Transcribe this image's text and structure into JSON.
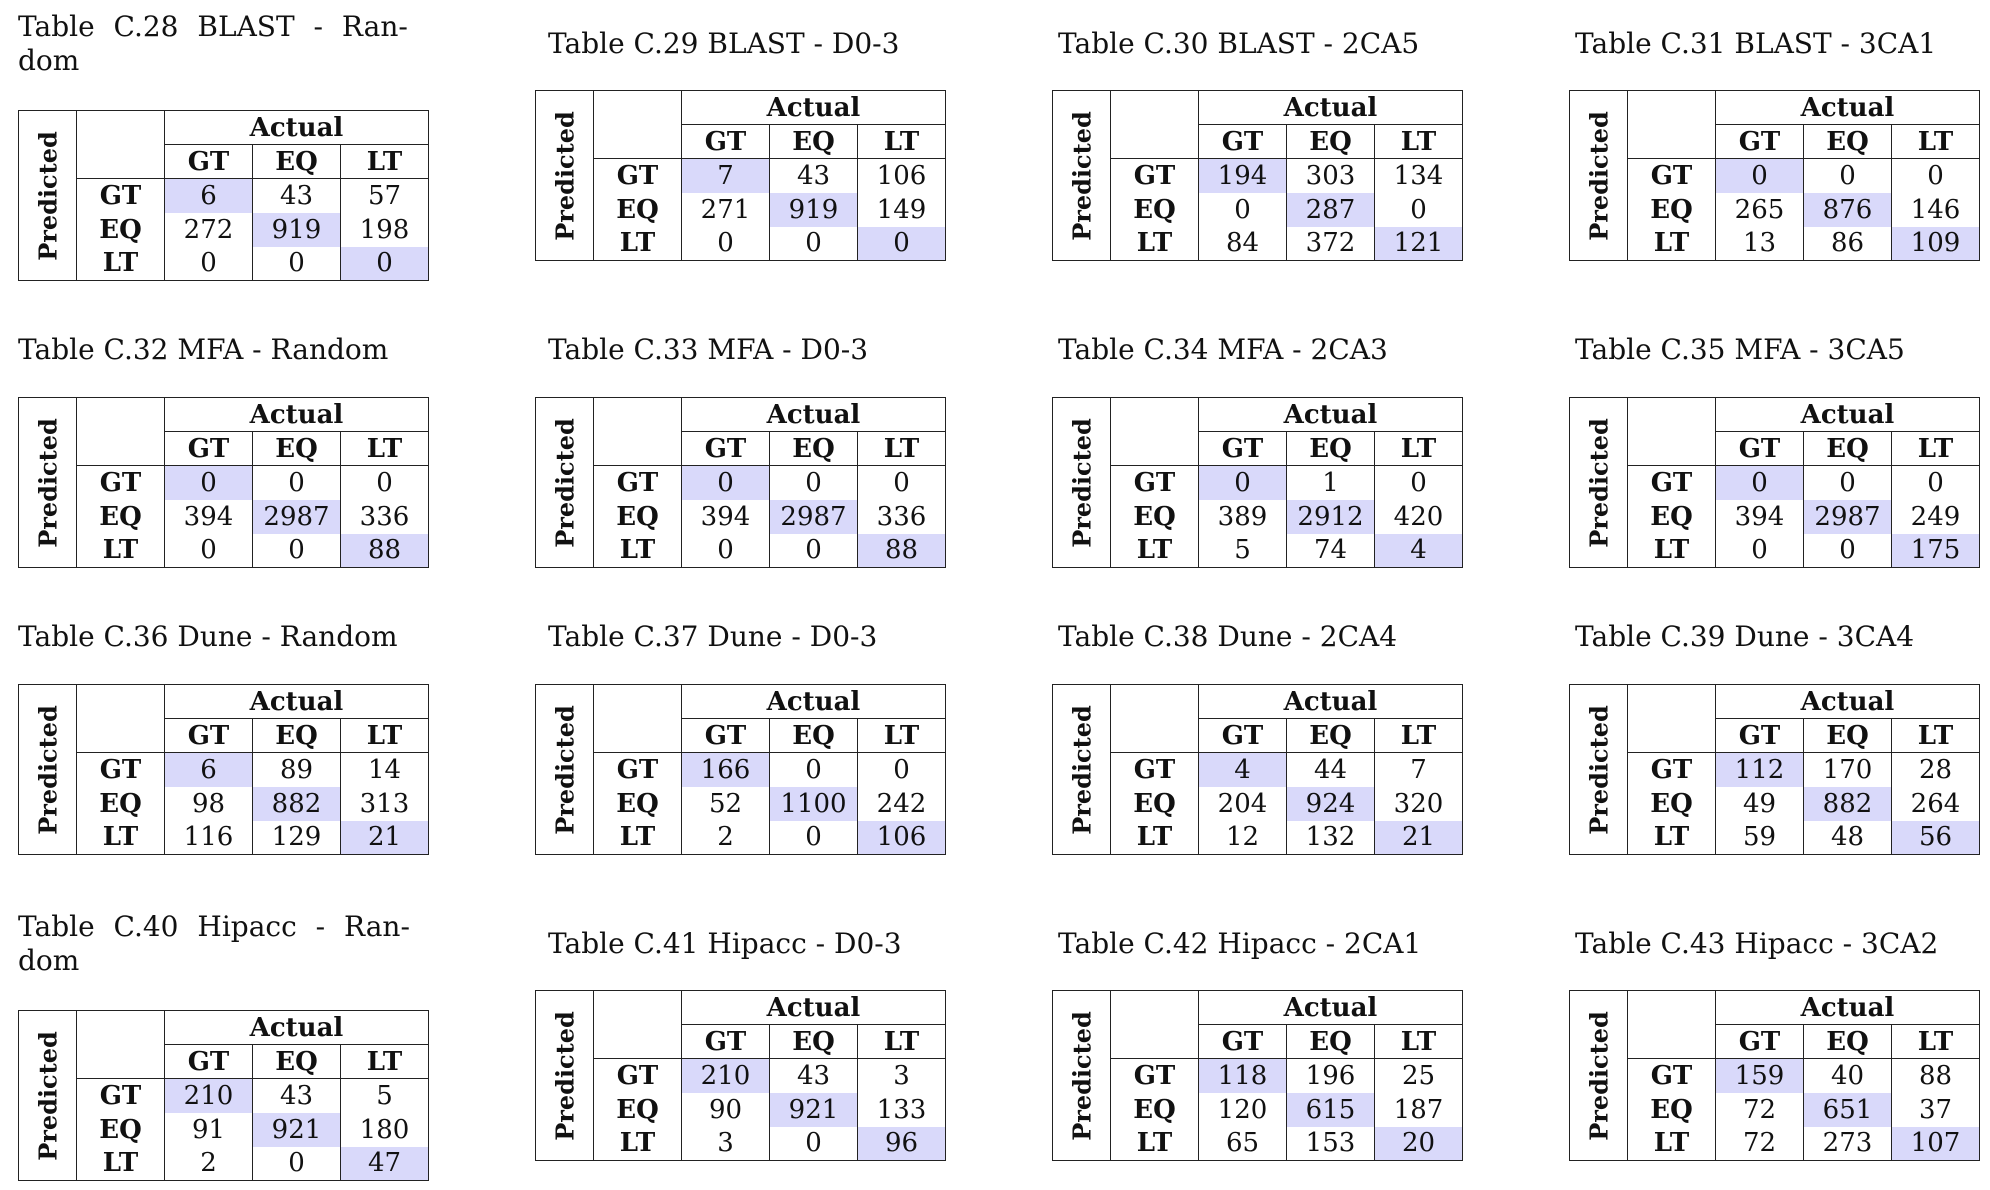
{
  "tables": [
    {
      "caption": "Table C.28 BLAST - Random",
      "rows": [
        [
          "6",
          "43",
          "57"
        ],
        [
          "272",
          "919",
          "198"
        ],
        [
          "0",
          "0",
          "0"
        ]
      ]
    },
    {
      "caption": "Table C.29 BLAST - D0-3",
      "rows": [
        [
          "7",
          "43",
          "106"
        ],
        [
          "271",
          "919",
          "149"
        ],
        [
          "0",
          "0",
          "0"
        ]
      ]
    },
    {
      "caption": "Table C.30 BLAST - 2CA5",
      "rows": [
        [
          "194",
          "303",
          "134"
        ],
        [
          "0",
          "287",
          "0"
        ],
        [
          "84",
          "372",
          "121"
        ]
      ]
    },
    {
      "caption": "Table C.31 BLAST - 3CA1",
      "rows": [
        [
          "0",
          "0",
          "0"
        ],
        [
          "265",
          "876",
          "146"
        ],
        [
          "13",
          "86",
          "109"
        ]
      ]
    },
    {
      "caption": "Table C.32 MFA - Random",
      "rows": [
        [
          "0",
          "0",
          "0"
        ],
        [
          "394",
          "2987",
          "336"
        ],
        [
          "0",
          "0",
          "88"
        ]
      ]
    },
    {
      "caption": "Table C.33 MFA - D0-3",
      "rows": [
        [
          "0",
          "0",
          "0"
        ],
        [
          "394",
          "2987",
          "336"
        ],
        [
          "0",
          "0",
          "88"
        ]
      ]
    },
    {
      "caption": "Table C.34 MFA - 2CA3",
      "rows": [
        [
          "0",
          "1",
          "0"
        ],
        [
          "389",
          "2912",
          "420"
        ],
        [
          "5",
          "74",
          "4"
        ]
      ]
    },
    {
      "caption": "Table C.35 MFA - 3CA5",
      "rows": [
        [
          "0",
          "0",
          "0"
        ],
        [
          "394",
          "2987",
          "249"
        ],
        [
          "0",
          "0",
          "175"
        ]
      ]
    },
    {
      "caption": "Table C.36 Dune - Random",
      "rows": [
        [
          "6",
          "89",
          "14"
        ],
        [
          "98",
          "882",
          "313"
        ],
        [
          "116",
          "129",
          "21"
        ]
      ]
    },
    {
      "caption": "Table C.37 Dune - D0-3",
      "rows": [
        [
          "166",
          "0",
          "0"
        ],
        [
          "52",
          "1100",
          "242"
        ],
        [
          "2",
          "0",
          "106"
        ]
      ]
    },
    {
      "caption": "Table C.38 Dune - 2CA4",
      "rows": [
        [
          "4",
          "44",
          "7"
        ],
        [
          "204",
          "924",
          "320"
        ],
        [
          "12",
          "132",
          "21"
        ]
      ]
    },
    {
      "caption": "Table C.39 Dune - 3CA4",
      "rows": [
        [
          "112",
          "170",
          "28"
        ],
        [
          "49",
          "882",
          "264"
        ],
        [
          "59",
          "48",
          "56"
        ]
      ]
    },
    {
      "caption": "Table C.40 Hipacc - Random",
      "rows": [
        [
          "210",
          "43",
          "5"
        ],
        [
          "91",
          "921",
          "180"
        ],
        [
          "2",
          "0",
          "47"
        ]
      ]
    },
    {
      "caption": "Table C.41 Hipacc - D0-3",
      "rows": [
        [
          "210",
          "43",
          "3"
        ],
        [
          "90",
          "921",
          "133"
        ],
        [
          "3",
          "0",
          "96"
        ]
      ]
    },
    {
      "caption": "Table C.42 Hipacc - 2CA1",
      "rows": [
        [
          "118",
          "196",
          "25"
        ],
        [
          "120",
          "615",
          "187"
        ],
        [
          "65",
          "153",
          "20"
        ]
      ]
    },
    {
      "caption": "Table C.43 Hipacc - 3CA2",
      "rows": [
        [
          "159",
          "40",
          "88"
        ],
        [
          "72",
          "651",
          "37"
        ],
        [
          "72",
          "273",
          "107"
        ]
      ]
    }
  ],
  "wrapped_captions": {
    "0": [
      "Table C.28 BLAST - Ran-",
      "dom"
    ],
    "12": [
      "Table C.40 Hipacc - Ran-",
      "dom"
    ]
  },
  "labels": {
    "actual": "Actual",
    "predicted": "Predicted",
    "classes": [
      "GT",
      "EQ",
      "LT"
    ]
  },
  "colors": {
    "diagonal": "#d9d9fa",
    "border": "#222222"
  }
}
